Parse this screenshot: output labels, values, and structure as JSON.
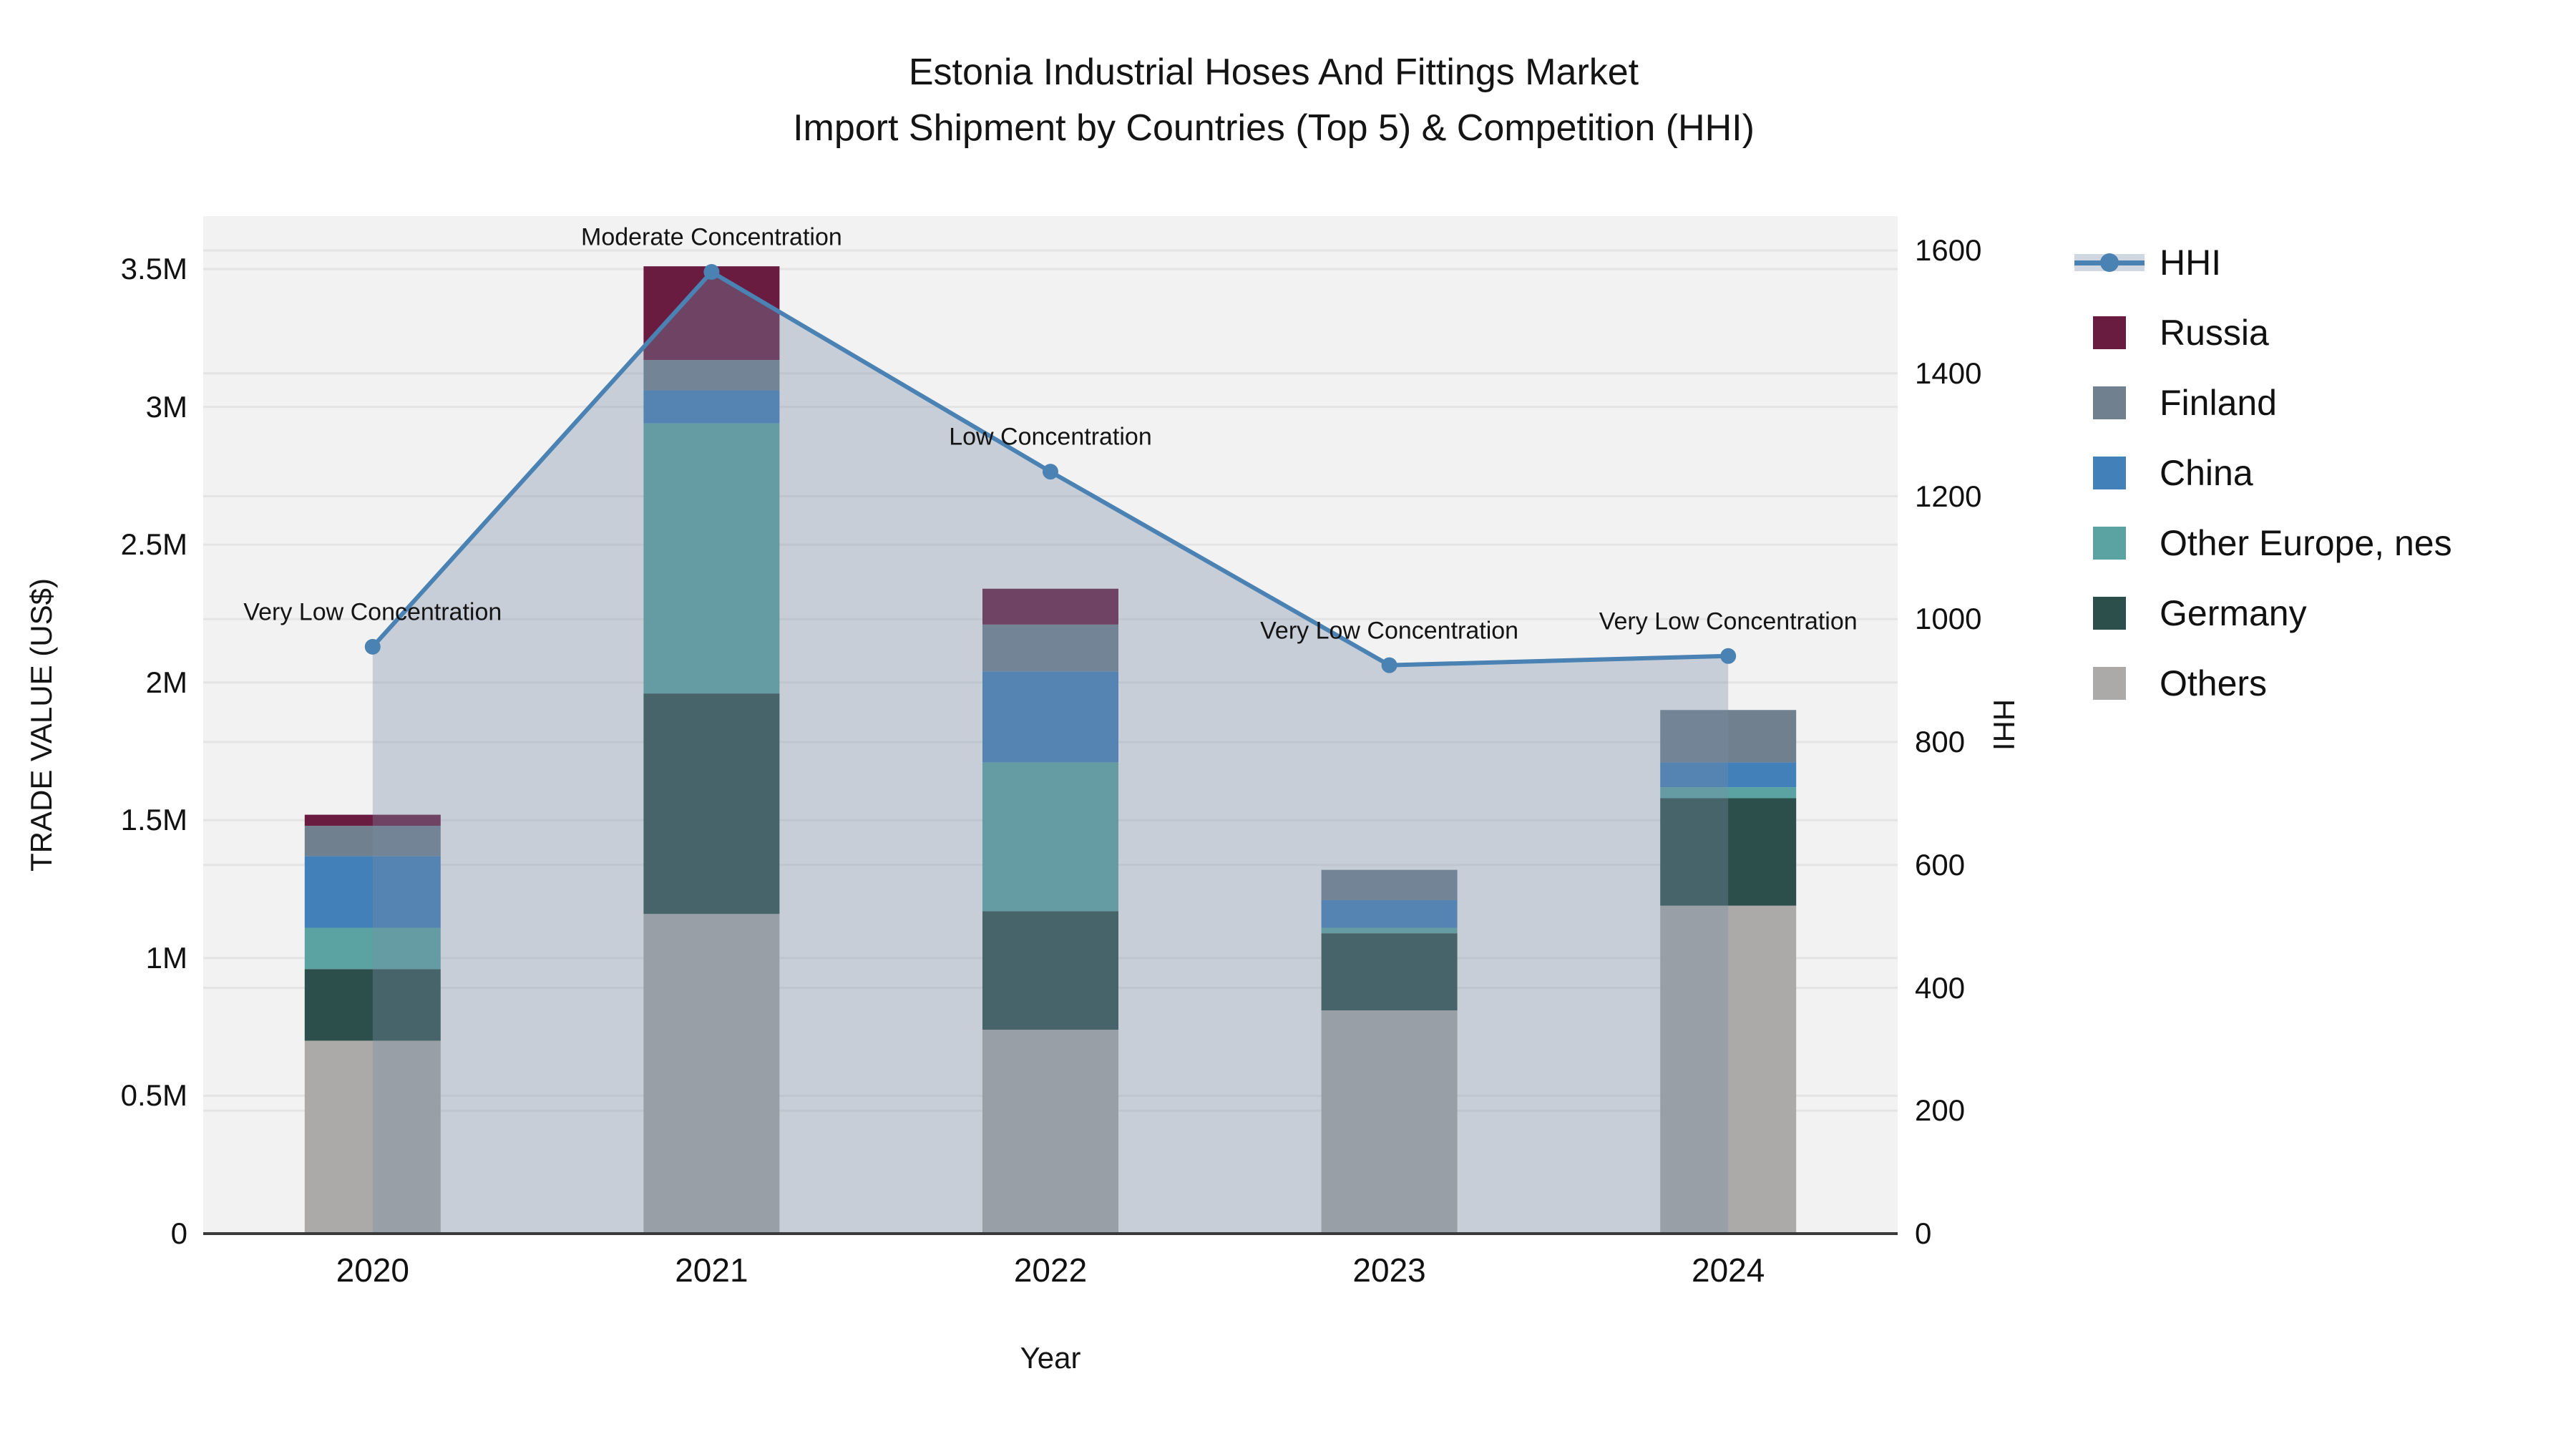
{
  "chart_data": {
    "type": "bar+line",
    "title": "Estonia Industrial Hoses And Fittings Market",
    "subtitle": "Import Shipment by Countries (Top 5) & Competition (HHI)",
    "xlabel": "Year",
    "ylabel_left": "TRADE VALUE (US$)",
    "ylabel_right": "HHI",
    "categories": [
      "2020",
      "2021",
      "2022",
      "2023",
      "2024"
    ],
    "left_axis": {
      "ticks": [
        {
          "label": "0",
          "value": 0
        },
        {
          "label": "0.5M",
          "value": 0.5
        },
        {
          "label": "1M",
          "value": 1
        },
        {
          "label": "1.5M",
          "value": 1.5
        },
        {
          "label": "2M",
          "value": 2
        },
        {
          "label": "2.5M",
          "value": 2.5
        },
        {
          "label": "3M",
          "value": 3
        },
        {
          "label": "3.5M",
          "value": 3.5
        }
      ],
      "range_millions_usd": [
        0,
        3.69
      ],
      "grid": true
    },
    "right_axis": {
      "ticks": [
        {
          "label": "0",
          "value": 0
        },
        {
          "label": "200",
          "value": 200
        },
        {
          "label": "400",
          "value": 400
        },
        {
          "label": "600",
          "value": 600
        },
        {
          "label": "800",
          "value": 800
        },
        {
          "label": "1000",
          "value": 1000
        },
        {
          "label": "1200",
          "value": 1200
        },
        {
          "label": "1400",
          "value": 1400
        },
        {
          "label": "1600",
          "value": 1600
        }
      ],
      "range": [
        0,
        1656
      ],
      "grid": true
    },
    "hhi_line": {
      "name": "HHI",
      "axis": "right",
      "values": [
        955,
        1565,
        1240,
        925,
        940
      ],
      "line_color": "#4a82b4",
      "marker_color": "#4a82b4",
      "area_fill_color": "rgba(120,140,165,0.35)",
      "annotations": [
        "Very Low Concentration",
        "Moderate Concentration",
        "Low Concentration",
        "Very Low Concentration",
        "Very Low Concentration"
      ]
    },
    "bar_series_values_millions_usd": [
      {
        "name": "Russia",
        "color": "#6a1c40",
        "values": [
          0.04,
          0.34,
          0.13,
          0.0,
          0.0
        ]
      },
      {
        "name": "Finland",
        "color": "#71808f",
        "values": [
          0.11,
          0.11,
          0.17,
          0.11,
          0.19
        ]
      },
      {
        "name": "China",
        "color": "#4280ba",
        "values": [
          0.26,
          0.12,
          0.33,
          0.1,
          0.09
        ]
      },
      {
        "name": "Other Europe, nes",
        "color": "#5ba3a2",
        "values": [
          0.15,
          0.98,
          0.54,
          0.02,
          0.04
        ]
      },
      {
        "name": "Germany",
        "color": "#2d4f4b",
        "values": [
          0.26,
          0.8,
          0.43,
          0.28,
          0.39
        ]
      },
      {
        "name": "Others",
        "color": "#abaaa8",
        "values": [
          0.7,
          1.16,
          0.74,
          0.81,
          1.19
        ]
      }
    ],
    "stack_order_bottom_to_top": [
      "Others",
      "Germany",
      "Other Europe, nes",
      "China",
      "Finland",
      "Russia"
    ],
    "bar_totals_millions_usd": [
      1.52,
      3.51,
      2.34,
      1.32,
      1.9
    ],
    "legend_order": [
      "HHI",
      "Russia",
      "Finland",
      "China",
      "Other Europe, nes",
      "Germany",
      "Others"
    ],
    "layout_hints": {
      "plot_bg_color": "#f2f2f2",
      "grid_color": "#e4e4e4",
      "axis_line_color": "#3a3a3a",
      "legend_position": "right"
    }
  }
}
